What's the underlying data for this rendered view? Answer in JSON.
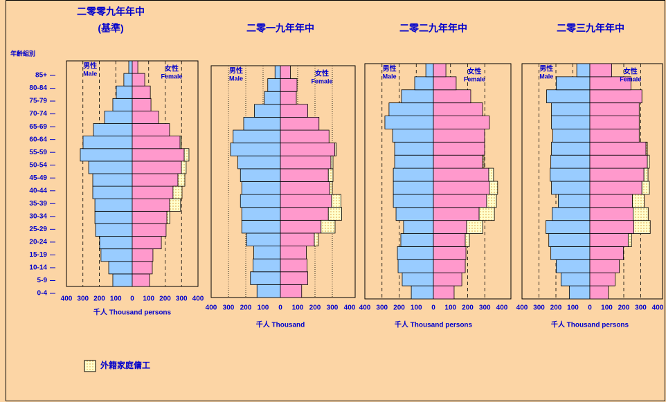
{
  "chart_data": [
    {
      "type": "population-pyramid",
      "title": "二零零九年年中",
      "subtitle": "(基準)",
      "y_label": "年齡組別",
      "x_label": "千人 Thousand persons",
      "categories": [
        "0-4",
        "5-9",
        "10-14",
        "15-19",
        "20-24",
        "25-29",
        "30-34",
        "35-39",
        "40-44",
        "45-49",
        "50-54",
        "55-59",
        "60-64",
        "65-69",
        "70-74",
        "75-79",
        "80-84",
        "85+"
      ],
      "xlim": [
        -400,
        400
      ],
      "xticks": [
        {
          "value": -400,
          "label": "400"
        },
        {
          "value": -300,
          "label": "300"
        },
        {
          "value": -200,
          "label": "200"
        },
        {
          "value": -100,
          "label": "100"
        },
        0,
        100,
        200,
        300,
        400
      ],
      "grid": "dashed",
      "series": [
        {
          "name": "男性",
          "name_en": "Male",
          "side": "left",
          "color": "#99CCFF",
          "values": [
            118,
            143,
            190,
            198,
            223,
            227,
            227,
            240,
            240,
            265,
            316,
            299,
            236,
            168,
            118,
            97,
            51,
            21
          ]
        },
        {
          "name": "女性",
          "name_en": "Female",
          "side": "right",
          "color": "#FF99CC",
          "values": [
            105,
            122,
            126,
            177,
            206,
            211,
            227,
            248,
            278,
            299,
            316,
            291,
            227,
            160,
            114,
            110,
            76,
            34
          ]
        },
        {
          "side": "right-stacked",
          "color": "pattern",
          "values": [
            0,
            0,
            0,
            0,
            0,
            17,
            67,
            55,
            42,
            29,
            29,
            8,
            0,
            0,
            0,
            0,
            0,
            0
          ]
        }
      ]
    },
    {
      "type": "population-pyramid",
      "title": "二零一九年年中",
      "x_label": "千人 Thousand",
      "xlim": [
        -400,
        400
      ],
      "xticks": [
        {
          "value": -400,
          "label": "400"
        },
        {
          "value": -300,
          "label": "300"
        },
        {
          "value": -200,
          "label": "200"
        },
        {
          "value": -100,
          "label": "100"
        },
        0,
        100,
        200,
        300,
        400
      ],
      "grid": "dotted",
      "series": [
        {
          "name": "男性",
          "name_en": "Male",
          "side": "left",
          "color": "#99CCFF",
          "values": [
            135,
            173,
            158,
            154,
            196,
            223,
            223,
            231,
            223,
            231,
            246,
            288,
            273,
            212,
            150,
            92,
            73,
            31
          ]
        },
        {
          "name": "女性",
          "name_en": "Female",
          "side": "right",
          "color": "#FF99CC",
          "values": [
            123,
            158,
            154,
            150,
            196,
            235,
            277,
            296,
            285,
            277,
            292,
            315,
            281,
            223,
            158,
            92,
            96,
            58
          ]
        },
        {
          "side": "right-stacked",
          "color": "pattern",
          "values": [
            0,
            0,
            0,
            0,
            23,
            81,
            77,
            54,
            15,
            27,
            12,
            8,
            0,
            0,
            0,
            0,
            0,
            0
          ]
        }
      ]
    },
    {
      "type": "population-pyramid",
      "title": "二零二九年年中",
      "x_label": "千人 Thousand persons",
      "xlim": [
        -400,
        400
      ],
      "xticks": [
        {
          "value": -400,
          "label": "400"
        },
        {
          "value": -300,
          "label": "300"
        },
        {
          "value": -200,
          "label": "200"
        },
        {
          "value": -100,
          "label": "100"
        },
        0,
        100,
        200,
        300,
        400
      ],
      "grid": "dashed",
      "series": [
        {
          "name": "男性",
          "name_en": "Male",
          "side": "left",
          "color": "#99CCFF",
          "values": [
            129,
            182,
            206,
            210,
            190,
            174,
            218,
            234,
            234,
            234,
            226,
            226,
            238,
            283,
            259,
            186,
            109,
            44
          ]
        },
        {
          "name": "女性",
          "name_en": "Female",
          "side": "right",
          "color": "#FF99CC",
          "values": [
            121,
            166,
            186,
            190,
            186,
            194,
            267,
            311,
            327,
            323,
            287,
            299,
            299,
            327,
            287,
            218,
            133,
            73
          ]
        },
        {
          "side": "right-stacked",
          "color": "pattern",
          "values": [
            0,
            0,
            0,
            0,
            24,
            93,
            89,
            57,
            48,
            28,
            8,
            0,
            0,
            0,
            0,
            0,
            0,
            0
          ]
        }
      ]
    },
    {
      "type": "population-pyramid",
      "title": "二零三九年年中",
      "x_label": "千人 Thousand persons",
      "xlim": [
        -400,
        400
      ],
      "xticks": [
        {
          "value": -400,
          "label": "400"
        },
        {
          "value": -300,
          "label": "300"
        },
        {
          "value": -200,
          "label": "200"
        },
        {
          "value": -100,
          "label": "100"
        },
        0,
        100,
        200,
        300,
        400
      ],
      "grid": "dashed",
      "series": [
        {
          "name": "男性",
          "name_en": "Male",
          "side": "left",
          "color": "#99CCFF",
          "values": [
            121,
            170,
            198,
            230,
            242,
            259,
            222,
            186,
            226,
            234,
            230,
            226,
            218,
            226,
            226,
            255,
            198,
            77
          ]
        },
        {
          "name": "女性",
          "name_en": "Female",
          "side": "right",
          "color": "#FF99CC",
          "values": [
            109,
            149,
            174,
            198,
            226,
            259,
            255,
            251,
            307,
            319,
            339,
            331,
            291,
            291,
            291,
            307,
            242,
            129
          ]
        },
        {
          "side": "right-stacked",
          "color": "pattern",
          "values": [
            0,
            0,
            0,
            0,
            20,
            97,
            89,
            69,
            44,
            24,
            12,
            8,
            0,
            0,
            0,
            0,
            0,
            0
          ]
        }
      ]
    }
  ],
  "legend": {
    "label": "外籍家庭傭工"
  }
}
